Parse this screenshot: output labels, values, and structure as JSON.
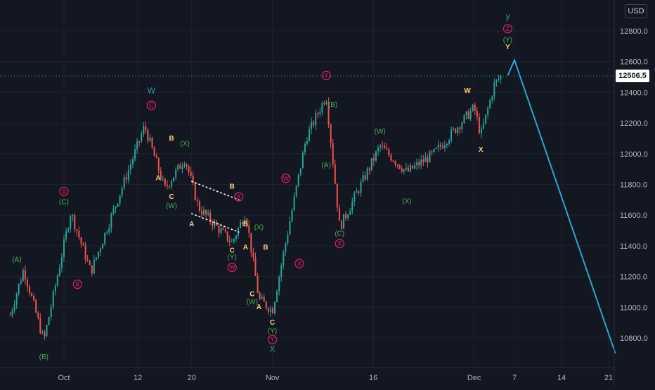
{
  "header": {
    "currency": "USD"
  },
  "last_price_label": "12506.5",
  "colors": {
    "background": "#131722",
    "grid": "#1e222d",
    "up_candle": "#26a69a",
    "down_candle": "#ef5350",
    "projection_line": "#2aa6cf",
    "wave_red": "#e91e63",
    "wave_green": "#4caf50",
    "wave_orange": "#ffcc80",
    "wave_blue": "#2a9bb0",
    "axis_text": "#b2b5be"
  },
  "chart_data": {
    "type": "candlestick",
    "instrument_currency": "USD",
    "x_tick_labels": [
      "Oct",
      "12",
      "20",
      "Nov",
      "16",
      "Dec",
      "7",
      "14",
      "21"
    ],
    "y_tick_labels": [
      "12800.0",
      "12600.0",
      "12400.0",
      "12200.0",
      "12000.0",
      "11800.0",
      "11600.0",
      "11400.0",
      "11200.0",
      "11000.0",
      "10800.0"
    ],
    "ylim": [
      10650,
      12950
    ],
    "grid": true,
    "last_price": 12506.5,
    "price_path_approx": [
      {
        "x": "Sep 23",
        "y": 10950
      },
      {
        "x": "Sep 25",
        "y": 11250
      },
      {
        "x": "Sep 28",
        "y": 10780
      },
      {
        "x": "Oct 2",
        "y": 11620
      },
      {
        "x": "Oct 5",
        "y": 11230
      },
      {
        "x": "Oct 13",
        "y": 12180
      },
      {
        "x": "Oct 16",
        "y": 11770
      },
      {
        "x": "Oct 19",
        "y": 11970
      },
      {
        "x": "Oct 21",
        "y": 11650
      },
      {
        "x": "Oct 26",
        "y": 11420
      },
      {
        "x": "Oct 28",
        "y": 11620
      },
      {
        "x": "Oct 30",
        "y": 11050
      },
      {
        "x": "Nov 1",
        "y": 10980
      },
      {
        "x": "Nov 6",
        "y": 12100
      },
      {
        "x": "Nov 9",
        "y": 12380
      },
      {
        "x": "Nov 11",
        "y": 11520
      },
      {
        "x": "Nov 17",
        "y": 12050
      },
      {
        "x": "Nov 21",
        "y": 11880
      },
      {
        "x": "Nov 25",
        "y": 12000
      },
      {
        "x": "Dec 1",
        "y": 12300
      },
      {
        "x": "Dec 2",
        "y": 12120
      },
      {
        "x": "Dec 4",
        "y": 12450
      },
      {
        "x": "Dec 5",
        "y": 12506.5
      }
    ],
    "projection": [
      {
        "x": "Dec 6",
        "y": 12510
      },
      {
        "x": "Dec 7",
        "y": 12610
      },
      {
        "x": "Dec 22",
        "y": 10700
      }
    ],
    "wave_labels": [
      {
        "text": "(B)",
        "color": "green",
        "x": "Sep 28",
        "y": 10680
      },
      {
        "text": "(A)",
        "color": "green",
        "x": "Sep 24",
        "y": 11315
      },
      {
        "text": "A",
        "color": "red_circle",
        "x": "Oct 1",
        "y": 11755
      },
      {
        "text": "(C)",
        "color": "green",
        "x": "Oct 1",
        "y": 11690
      },
      {
        "text": "B",
        "color": "red_circle",
        "x": "Oct 3",
        "y": 11150
      },
      {
        "text": "W",
        "color": "blue",
        "x": "Oct 14",
        "y": 12410
      },
      {
        "text": "C",
        "color": "red_circle",
        "x": "Oct 14",
        "y": 12315
      },
      {
        "text": "B",
        "color": "orange",
        "x": "Oct 17",
        "y": 12105
      },
      {
        "text": "(X)",
        "color": "green",
        "x": "Oct 19",
        "y": 12070
      },
      {
        "text": "A",
        "color": "orange",
        "x": "Oct 15",
        "y": 11845
      },
      {
        "text": "C",
        "color": "orange",
        "x": "Oct 17",
        "y": 11725
      },
      {
        "text": "(W)",
        "color": "green",
        "x": "Oct 17",
        "y": 11665
      },
      {
        "text": "A",
        "color": "orange",
        "x": "Oct 20",
        "y": 11545
      },
      {
        "text": "B",
        "color": "orange",
        "x": "Oct 26",
        "y": 11790
      },
      {
        "text": "X",
        "color": "red_circle",
        "x": "Oct 27",
        "y": 11720
      },
      {
        "text": "B",
        "color": "orange",
        "x": "Oct 28",
        "y": 11545
      },
      {
        "text": "(X)",
        "color": "green",
        "x": "Oct 30",
        "y": 11525
      },
      {
        "text": "C",
        "color": "orange",
        "x": "Oct 26",
        "y": 11375
      },
      {
        "text": "(Y)",
        "color": "green",
        "x": "Oct 26",
        "y": 11330
      },
      {
        "text": "W",
        "color": "red_circle",
        "x": "Oct 26",
        "y": 11260
      },
      {
        "text": "A",
        "color": "orange",
        "x": "Oct 28",
        "y": 11395
      },
      {
        "text": "B",
        "color": "orange",
        "x": "Oct 31",
        "y": 11395
      },
      {
        "text": "C",
        "color": "orange",
        "x": "Oct 29",
        "y": 11090
      },
      {
        "text": "(W)",
        "color": "green",
        "x": "Oct 29",
        "y": 11040
      },
      {
        "text": "A",
        "color": "orange",
        "x": "Oct 30",
        "y": 11005
      },
      {
        "text": "C",
        "color": "orange",
        "x": "Nov 1",
        "y": 10905
      },
      {
        "text": "(Y)",
        "color": "green",
        "x": "Nov 1",
        "y": 10850
      },
      {
        "text": "Y",
        "color": "red_circle",
        "x": "Nov 1",
        "y": 10790
      },
      {
        "text": "X",
        "color": "blue",
        "x": "Nov 1",
        "y": 10730
      },
      {
        "text": "W",
        "color": "red_circle",
        "x": "Nov 3",
        "y": 11840
      },
      {
        "text": "X",
        "color": "red_circle",
        "x": "Nov 5",
        "y": 11285
      },
      {
        "text": "Y",
        "color": "red_circle",
        "x": "Nov 9",
        "y": 12510
      },
      {
        "text": "(B)",
        "color": "green",
        "x": "Nov 10",
        "y": 12325
      },
      {
        "text": "(A)",
        "color": "green",
        "x": "Nov 9",
        "y": 11930
      },
      {
        "text": "(C)",
        "color": "green",
        "x": "Nov 11",
        "y": 11485
      },
      {
        "text": "X",
        "color": "red_circle",
        "x": "Nov 11",
        "y": 11415
      },
      {
        "text": "(W)",
        "color": "green",
        "x": "Nov 17",
        "y": 12150
      },
      {
        "text": "(X)",
        "color": "green",
        "x": "Nov 21",
        "y": 11695
      },
      {
        "text": "W",
        "color": "orange",
        "x": "Nov 30",
        "y": 12415
      },
      {
        "text": "X",
        "color": "orange",
        "x": "Dec 2",
        "y": 12030
      },
      {
        "text": "y",
        "color": "blue",
        "x": "Dec 6",
        "y": 12895
      },
      {
        "text": "Z",
        "color": "red_circle",
        "x": "Dec 6",
        "y": 12815
      },
      {
        "text": "(Y)",
        "color": "green",
        "x": "Dec 6",
        "y": 12745
      },
      {
        "text": "Y",
        "color": "orange",
        "x": "Dec 6",
        "y": 12700
      }
    ]
  }
}
